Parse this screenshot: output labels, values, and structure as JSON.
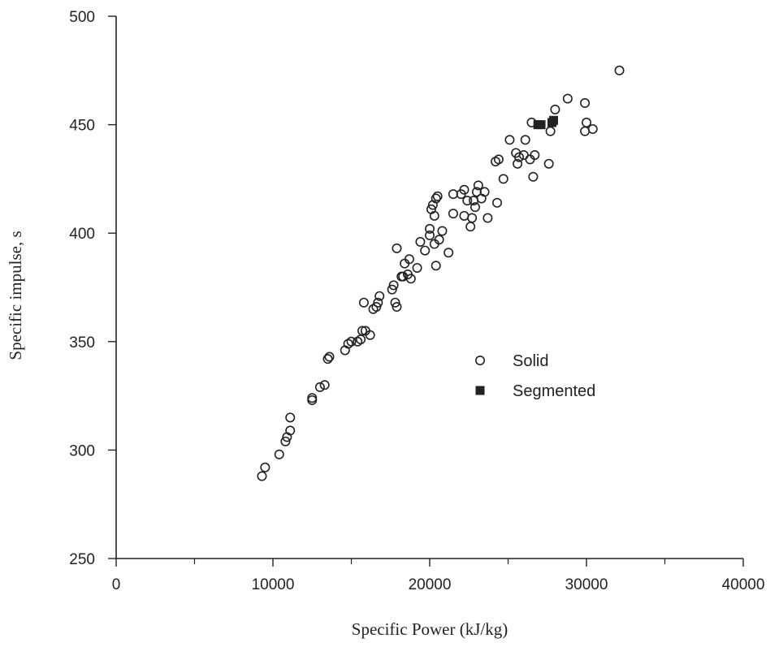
{
  "chart_data": {
    "type": "scatter",
    "title": "",
    "xlabel": "Specific Power (kJ/kg)",
    "ylabel": "Specific impulse, s",
    "xlim": [
      0,
      40000
    ],
    "ylim": [
      250,
      500
    ],
    "x_ticks": [
      0,
      10000,
      20000,
      30000,
      40000
    ],
    "x_tick_labels": [
      "0",
      "10000",
      "20000",
      "30000",
      "40000"
    ],
    "y_ticks": [
      250,
      300,
      350,
      400,
      450,
      500
    ],
    "y_tick_labels": [
      "250",
      "300",
      "350",
      "400",
      "450",
      "500"
    ],
    "grid": false,
    "legend_position": "center-right",
    "series": [
      {
        "name": "Solid",
        "marker": "open-circle",
        "color": "#222222",
        "points": [
          [
            9300,
            288
          ],
          [
            9500,
            292
          ],
          [
            10400,
            298
          ],
          [
            10800,
            304
          ],
          [
            10900,
            306
          ],
          [
            11100,
            309
          ],
          [
            11100,
            315
          ],
          [
            12500,
            323
          ],
          [
            12500,
            324
          ],
          [
            13000,
            329
          ],
          [
            13300,
            330
          ],
          [
            13500,
            342
          ],
          [
            13600,
            343
          ],
          [
            14600,
            346
          ],
          [
            14800,
            349
          ],
          [
            15000,
            350
          ],
          [
            15400,
            350
          ],
          [
            15600,
            351
          ],
          [
            15700,
            355
          ],
          [
            15900,
            355
          ],
          [
            16200,
            353
          ],
          [
            15800,
            368
          ],
          [
            16400,
            365
          ],
          [
            16600,
            366
          ],
          [
            16700,
            368
          ],
          [
            16800,
            371
          ],
          [
            17600,
            374
          ],
          [
            17700,
            376
          ],
          [
            17800,
            368
          ],
          [
            17900,
            366
          ],
          [
            17900,
            393
          ],
          [
            18200,
            380
          ],
          [
            18300,
            380
          ],
          [
            18400,
            386
          ],
          [
            18600,
            381
          ],
          [
            18700,
            388
          ],
          [
            18800,
            379
          ],
          [
            19200,
            384
          ],
          [
            19400,
            396
          ],
          [
            19700,
            392
          ],
          [
            20000,
            399
          ],
          [
            20000,
            402
          ],
          [
            20100,
            411
          ],
          [
            20200,
            413
          ],
          [
            20300,
            408
          ],
          [
            20300,
            395
          ],
          [
            20400,
            385
          ],
          [
            20400,
            416
          ],
          [
            20500,
            417
          ],
          [
            20600,
            397
          ],
          [
            20800,
            401
          ],
          [
            21200,
            391
          ],
          [
            21500,
            418
          ],
          [
            21500,
            409
          ],
          [
            22000,
            418
          ],
          [
            22200,
            420
          ],
          [
            22200,
            408
          ],
          [
            22400,
            415
          ],
          [
            22600,
            403
          ],
          [
            22700,
            407
          ],
          [
            22800,
            415
          ],
          [
            22900,
            412
          ],
          [
            23000,
            419
          ],
          [
            23100,
            422
          ],
          [
            23300,
            416
          ],
          [
            23500,
            419
          ],
          [
            23700,
            407
          ],
          [
            24300,
            414
          ],
          [
            24200,
            433
          ],
          [
            24400,
            434
          ],
          [
            24700,
            425
          ],
          [
            25100,
            443
          ],
          [
            25500,
            437
          ],
          [
            25600,
            432
          ],
          [
            25700,
            435
          ],
          [
            26000,
            436
          ],
          [
            26100,
            443
          ],
          [
            26400,
            434
          ],
          [
            26600,
            426
          ],
          [
            26700,
            436
          ],
          [
            26500,
            451
          ],
          [
            27600,
            432
          ],
          [
            27700,
            447
          ],
          [
            28000,
            457
          ],
          [
            28800,
            462
          ],
          [
            29900,
            460
          ],
          [
            29900,
            447
          ],
          [
            30000,
            451
          ],
          [
            30400,
            448
          ],
          [
            32100,
            475
          ]
        ]
      },
      {
        "name": "Segmented",
        "marker": "filled-square",
        "color": "#222222",
        "points": [
          [
            26900,
            450
          ],
          [
            27100,
            450
          ],
          [
            27800,
            451
          ],
          [
            27900,
            452
          ]
        ]
      }
    ]
  }
}
